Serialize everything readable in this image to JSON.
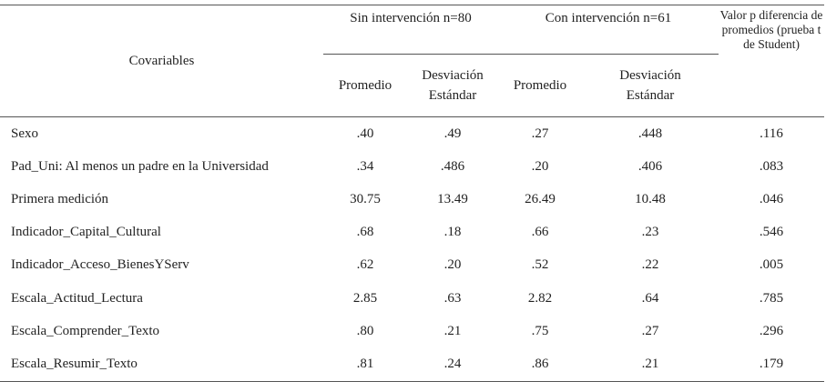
{
  "table": {
    "header": {
      "covariables": "Covariables",
      "groups": [
        "Sin intervención n=80",
        "Con intervención n=61"
      ],
      "p_value": "Valor p diferencia de promedios (prueba t de Student)",
      "subheaders": [
        "Promedio",
        "Desviación Estándar",
        "Promedio",
        "Desviación Estándar"
      ]
    },
    "rows": [
      [
        "Sexo",
        ".40",
        ".49",
        ".27",
        ".448",
        ".116"
      ],
      [
        "Pad_Uni: Al menos un padre en la Universidad",
        ".34",
        ".486",
        ".20",
        ".406",
        ".083"
      ],
      [
        "Primera medición",
        "30.75",
        "13.49",
        "26.49",
        "10.48",
        ".046"
      ],
      [
        "Indicador_Capital_Cultural",
        ".68",
        ".18",
        ".66",
        ".23",
        ".546"
      ],
      [
        "Indicador_Acceso_BienesYServ",
        ".62",
        ".20",
        ".52",
        ".22",
        ".005"
      ],
      [
        "Escala_Actitud_Lectura",
        "2.85",
        ".63",
        "2.82",
        ".64",
        ".785"
      ],
      [
        "Escala_Comprender_Texto",
        ".80",
        ".21",
        ".75",
        ".27",
        ".296"
      ],
      [
        "Escala_Resumir_Texto",
        ".81",
        ".24",
        ".86",
        ".21",
        ".179"
      ]
    ]
  }
}
